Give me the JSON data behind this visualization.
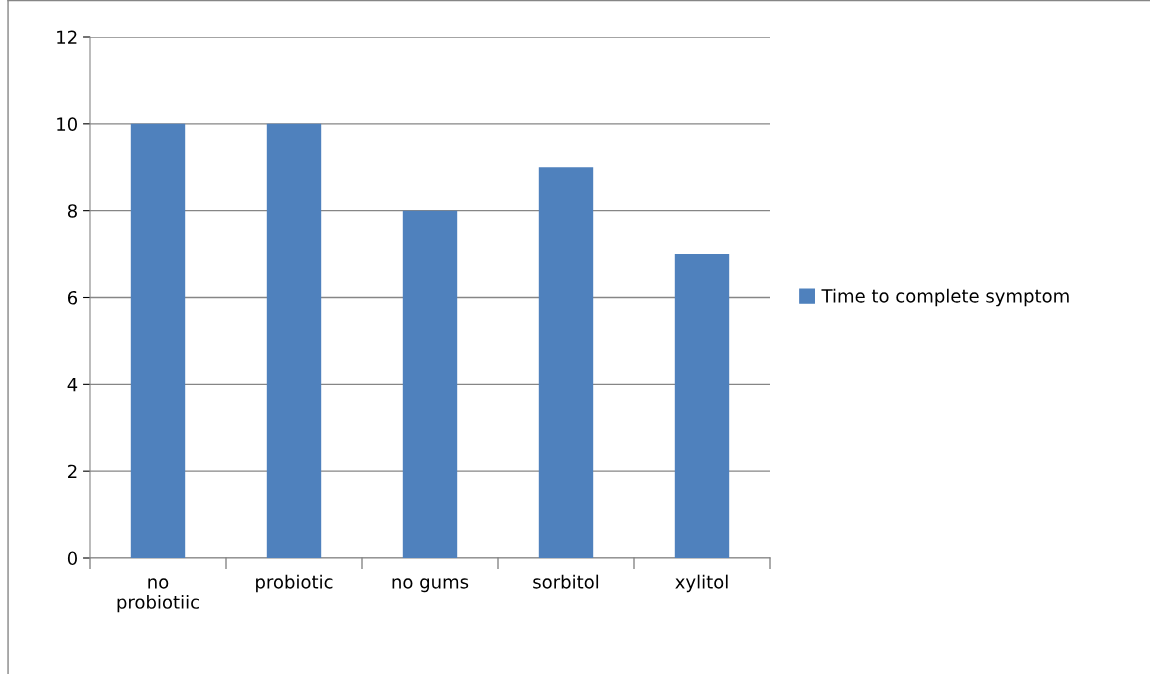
{
  "chart_data": {
    "type": "bar",
    "categories": [
      "no probiotiic",
      "probiotic",
      "no gums",
      "sorbitol",
      "xylitol"
    ],
    "series": [
      {
        "name": "Time to complete symptom",
        "color": "#4f81bd",
        "values": [
          10,
          10,
          8,
          9,
          7
        ]
      }
    ],
    "ylim": [
      0,
      12
    ],
    "yticks": [
      0,
      2,
      4,
      6,
      8,
      10,
      12
    ],
    "grid": "y",
    "legend": "right"
  }
}
